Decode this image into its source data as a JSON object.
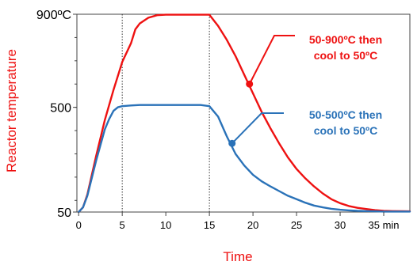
{
  "chart_data": {
    "type": "line",
    "xlabel": "Time",
    "ylabel": "Reactor temperature",
    "xlim": [
      -0.2,
      38
    ],
    "ylim": [
      50,
      900
    ],
    "x_ticks": [
      0,
      5,
      10,
      15,
      20,
      25,
      30
    ],
    "x_last_tick_label": "35 min",
    "x_last_tick_value": 35,
    "y_ticks": [
      {
        "value": 900,
        "label": "900ºC"
      },
      {
        "value": 500,
        "label": "500"
      },
      {
        "value": 50,
        "label": "50"
      }
    ],
    "reference_lines_x": [
      5,
      15
    ],
    "series": [
      {
        "name": "50-900ºC then cool to 50ºC",
        "color": "#ee1111",
        "x": [
          0,
          0.5,
          1,
          2,
          3,
          4,
          5,
          6,
          6.5,
          7,
          8,
          9,
          10,
          11,
          12,
          13,
          14,
          15,
          16,
          17,
          18,
          19,
          20,
          21,
          22,
          23,
          24,
          25,
          26,
          27,
          28,
          29,
          30,
          31,
          32,
          33,
          34,
          35,
          36,
          38
        ],
        "y": [
          50,
          70,
          125,
          290,
          445,
          575,
          695,
          775,
          835,
          860,
          885,
          896,
          898,
          898,
          898,
          898,
          898,
          898,
          850,
          790,
          720,
          640,
          560,
          480,
          410,
          345,
          285,
          235,
          195,
          160,
          130,
          105,
          88,
          76,
          68,
          63,
          58,
          55,
          54,
          53
        ]
      },
      {
        "name": "50-500ºC then cool to 50ºC",
        "color": "#2a72b8",
        "x": [
          0,
          0.5,
          1,
          2,
          3,
          3.5,
          4,
          4.5,
          5,
          6,
          7,
          8,
          9,
          10,
          11,
          12,
          13,
          14,
          15,
          16,
          17,
          18,
          19,
          20,
          21,
          22,
          23,
          24,
          25,
          26,
          27,
          28,
          29,
          30,
          31,
          32,
          33,
          34,
          35,
          36,
          38
        ],
        "y": [
          50,
          70,
          120,
          270,
          405,
          450,
          485,
          500,
          505,
          508,
          510,
          510,
          510,
          510,
          510,
          510,
          510,
          510,
          505,
          460,
          375,
          300,
          250,
          210,
          182,
          160,
          140,
          120,
          105,
          90,
          78,
          70,
          64,
          60,
          57,
          55,
          54,
          53,
          52,
          52,
          52
        ]
      }
    ],
    "annotations": [
      {
        "series": 0,
        "lines": [
          "50-900ºC then",
          "cool to 50ºC"
        ],
        "point_x": 19.6,
        "point_y": 600,
        "color": "#ee1111"
      },
      {
        "series": 1,
        "lines": [
          "50-500ºC then",
          "cool to 50ºC"
        ],
        "point_x": 17.6,
        "point_y": 345,
        "color": "#2a72b8"
      }
    ],
    "grid": false,
    "legend": "none"
  }
}
